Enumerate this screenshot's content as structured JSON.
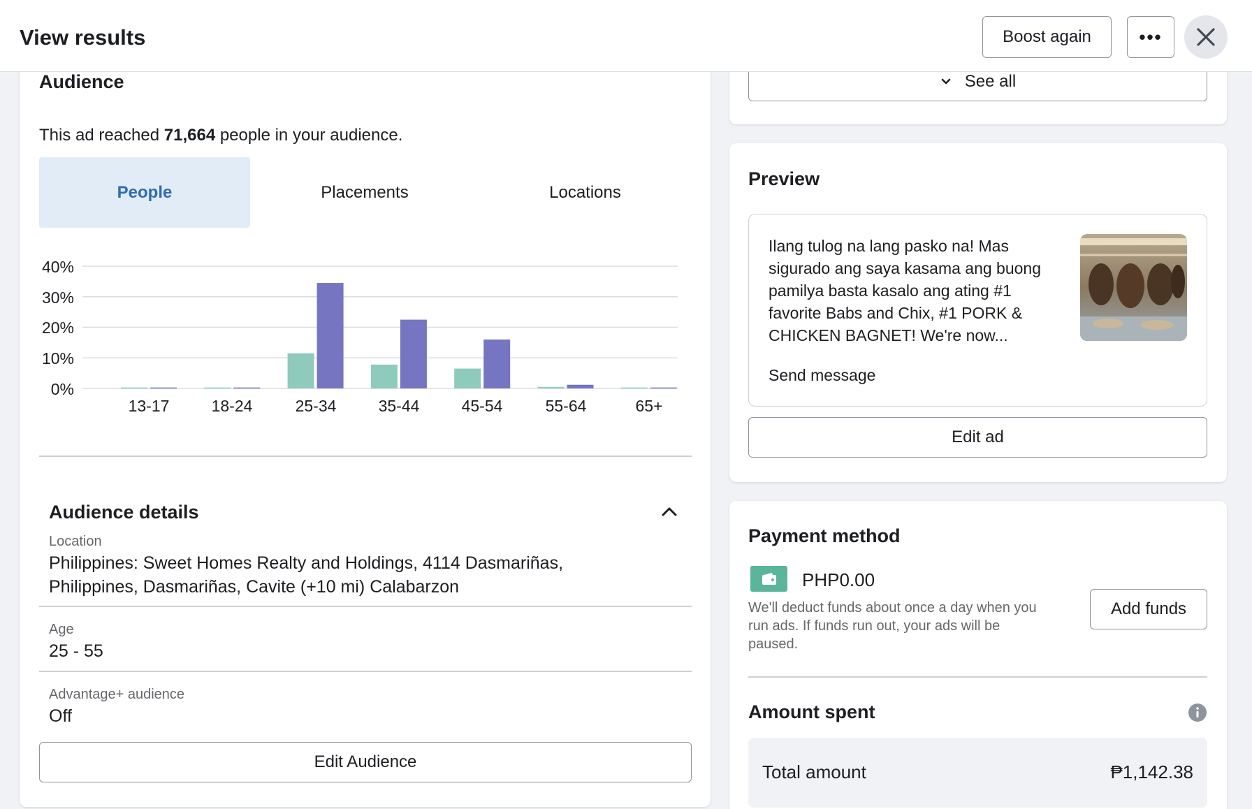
{
  "header": {
    "title": "View results",
    "boost_again": "Boost again",
    "more": "•••",
    "close_icon": "close-icon"
  },
  "top_card": {
    "see_all": "See all"
  },
  "audience": {
    "title": "Audience",
    "reach_prefix": "This ad reached ",
    "reach_count": "71,664",
    "reach_suffix": " people in your audience.",
    "tabs": [
      {
        "label": "People",
        "active": true
      },
      {
        "label": "Placements",
        "active": false
      },
      {
        "label": "Locations",
        "active": false
      }
    ],
    "details_title": "Audience details",
    "location_label": "Location",
    "location_line1": "Philippines: Sweet Homes Realty and Holdings, 4114 Dasmariñas,",
    "location_line2": "Philippines, Dasmariñas, Cavite (+10 mi) Calabarzon",
    "age_label": "Age",
    "age_value": "25 - 55",
    "advantage_label": "Advantage+ audience",
    "advantage_value": "Off",
    "edit_audience": "Edit Audience"
  },
  "chart_data": {
    "type": "bar",
    "categories": [
      "13-17",
      "18-24",
      "25-34",
      "35-44",
      "45-54",
      "55-64",
      "65+"
    ],
    "yticks": [
      "40%",
      "30%",
      "20%",
      "10%",
      "0%"
    ],
    "ylim": [
      0,
      40
    ],
    "grid": true,
    "colors": [
      "#8ecbbd",
      "#7575c2"
    ],
    "series": [
      {
        "values": [
          0.3,
          0.3,
          11.5,
          7.8,
          6.5,
          0.5,
          0.3
        ]
      },
      {
        "values": [
          0.3,
          0.3,
          34.5,
          22.5,
          16.0,
          1.2,
          0.3
        ]
      }
    ]
  },
  "preview": {
    "title": "Preview",
    "text_lines": [
      "Ilang tulog na lang pasko na! Mas",
      "sigurado ang saya kasama ang buong",
      "pamilya basta kasalo ang ating #1",
      "favorite Babs and Chix, #1 PORK &",
      "CHICKEN BAGNET! We're now..."
    ],
    "send_message": "Send message",
    "edit_ad": "Edit ad"
  },
  "payment": {
    "title": "Payment method",
    "balance": "PHP0.00",
    "note_lines": [
      "We'll deduct funds about once a day when you",
      "run ads. If funds run out, your ads will be",
      "paused."
    ],
    "add_funds": "Add funds",
    "amount_spent_title": "Amount spent",
    "total_label": "Total amount",
    "total_value": "₱1,142.38"
  }
}
